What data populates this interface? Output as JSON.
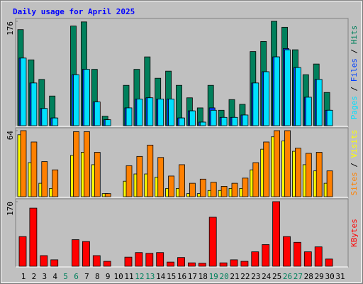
{
  "chart_data": [
    {
      "type": "bar",
      "title": "Daily usage for April 2025",
      "title_color": "#0000ff",
      "legend_separator": "/",
      "ylim": [
        0,
        176
      ],
      "yticks": [
        176
      ],
      "series": [
        {
          "name": "Hits",
          "color": "#00805c",
          "values": [
            162,
            111,
            78,
            50,
            0,
            168,
            175,
            95,
            16,
            0,
            68,
            95,
            116,
            80,
            92,
            68,
            47,
            30,
            68,
            26,
            44,
            36,
            125,
            142,
            176,
            166,
            128,
            86,
            104,
            56,
            0
          ]
        },
        {
          "name": "Files",
          "color": "#0040ff",
          "values": [
            114,
            72,
            29,
            13,
            0,
            86,
            95,
            40,
            10,
            0,
            30,
            45,
            47,
            45,
            45,
            13,
            25,
            6,
            30,
            14,
            14,
            18,
            72,
            91,
            116,
            130,
            98,
            48,
            78,
            26,
            0
          ]
        },
        {
          "name": "Pages",
          "color": "#00e0ff",
          "values": [
            114,
            72,
            29,
            13,
            0,
            86,
            95,
            40,
            10,
            0,
            30,
            45,
            47,
            45,
            45,
            13,
            25,
            6,
            26,
            14,
            14,
            18,
            72,
            91,
            116,
            128,
            98,
            48,
            78,
            26,
            0
          ]
        }
      ]
    },
    {
      "type": "bar",
      "legend_separator": "/",
      "ylim": [
        0,
        64
      ],
      "yticks": [
        64
      ],
      "series": [
        {
          "name": "Visits",
          "color": "#ffff00",
          "values": [
            60,
            33,
            13,
            8,
            0,
            40,
            43,
            31,
            3,
            0,
            15,
            22,
            22,
            19,
            8,
            8,
            3,
            3,
            6,
            6,
            8,
            8,
            26,
            46,
            58,
            54,
            44,
            31,
            25,
            13,
            0
          ]
        },
        {
          "name": "Sites",
          "color": "#ff8000",
          "values": [
            64,
            53,
            34,
            26,
            0,
            63,
            63,
            43,
            3,
            0,
            30,
            39,
            50,
            38,
            20,
            31,
            13,
            17,
            14,
            10,
            13,
            18,
            33,
            53,
            64,
            64,
            47,
            42,
            43,
            25,
            0
          ]
        }
      ]
    },
    {
      "type": "bar",
      "ylim": [
        0,
        170
      ],
      "yticks": [
        170
      ],
      "categories": [
        "1",
        "2",
        "3",
        "4",
        "5",
        "6",
        "7",
        "8",
        "9",
        "10",
        "11",
        "12",
        "13",
        "14",
        "15",
        "16",
        "17",
        "18",
        "19",
        "20",
        "21",
        "22",
        "23",
        "24",
        "25",
        "26",
        "27",
        "28",
        "29",
        "30",
        "31"
      ],
      "category_colors": [
        "#000000",
        "#000000",
        "#000000",
        "#000000",
        "#00805c",
        "#00805c",
        "#000000",
        "#000000",
        "#000000",
        "#000000",
        "#000000",
        "#00805c",
        "#00805c",
        "#000000",
        "#000000",
        "#000000",
        "#000000",
        "#000000",
        "#00805c",
        "#00805c",
        "#000000",
        "#000000",
        "#000000",
        "#000000",
        "#000000",
        "#00805c",
        "#00805c",
        "#000000",
        "#000000",
        "#000000",
        "#000000"
      ],
      "series": [
        {
          "name": "KBytes",
          "color": "#ff0000",
          "values": [
            78,
            153,
            28,
            17,
            0,
            70,
            65,
            28,
            13,
            0,
            24,
            36,
            34,
            36,
            11,
            23,
            9,
            8,
            129,
            9,
            17,
            13,
            38,
            57,
            170,
            78,
            63,
            38,
            51,
            19,
            0
          ]
        }
      ]
    }
  ]
}
